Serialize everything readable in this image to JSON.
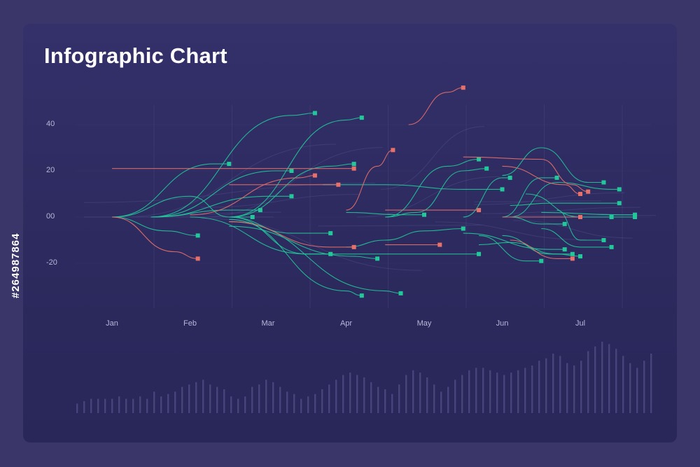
{
  "title": "Infographic Chart",
  "stock_id": "#264987864",
  "colors": {
    "background": "#3a366a",
    "panel": "#2e2b60",
    "green": "#22c79a",
    "red": "#e8706a",
    "grid": "#4a4780",
    "bars": "#4a477f"
  },
  "chart_data": {
    "type": "line",
    "title": "Infographic Chart",
    "y_ticks": [
      "40",
      "20",
      "00",
      "-20"
    ],
    "x_ticks": [
      "Jan",
      "Feb",
      "Mar",
      "Apr",
      "May",
      "Jun",
      "Jul"
    ],
    "ylim": [
      -37,
      57
    ],
    "xlim": [
      0,
      7.2
    ],
    "grid": "vertical lines at month boundaries",
    "series": [
      {
        "color": "green",
        "points": [
          [
            0.5,
            0
          ],
          [
            1.5,
            9
          ],
          [
            2.0,
            0
          ],
          [
            2.3,
            0
          ]
        ]
      },
      {
        "color": "green",
        "points": [
          [
            0.5,
            0
          ],
          [
            1.2,
            -6
          ],
          [
            1.6,
            -8
          ]
        ]
      },
      {
        "color": "green",
        "points": [
          [
            0.5,
            0
          ],
          [
            1.8,
            23
          ],
          [
            2.0,
            23
          ]
        ]
      },
      {
        "color": "green",
        "points": [
          [
            1.0,
            0
          ],
          [
            2.0,
            3
          ],
          [
            2.4,
            3
          ]
        ]
      },
      {
        "color": "green",
        "points": [
          [
            1.0,
            0
          ],
          [
            2.6,
            20
          ],
          [
            2.8,
            20
          ]
        ]
      },
      {
        "color": "green",
        "points": [
          [
            1.0,
            0
          ],
          [
            2.5,
            9
          ],
          [
            2.8,
            9
          ]
        ]
      },
      {
        "color": "green",
        "points": [
          [
            1.0,
            0
          ],
          [
            2.8,
            44
          ],
          [
            3.1,
            45
          ]
        ]
      },
      {
        "color": "green",
        "points": [
          [
            1.5,
            0
          ],
          [
            3.0,
            -16
          ],
          [
            3.3,
            -16
          ]
        ]
      },
      {
        "color": "green",
        "points": [
          [
            2.0,
            0
          ],
          [
            3.3,
            22
          ],
          [
            3.6,
            23
          ]
        ]
      },
      {
        "color": "green",
        "points": [
          [
            2.0,
            0
          ],
          [
            3.5,
            42
          ],
          [
            3.7,
            43
          ]
        ]
      },
      {
        "color": "green",
        "points": [
          [
            2.0,
            0
          ],
          [
            2.8,
            -7
          ],
          [
            3.3,
            -7
          ]
        ]
      },
      {
        "color": "green",
        "points": [
          [
            2.0,
            -1
          ],
          [
            3.5,
            -32
          ],
          [
            3.7,
            -34
          ]
        ]
      },
      {
        "color": "green",
        "points": [
          [
            2.0,
            -2
          ],
          [
            4.0,
            -32
          ],
          [
            4.2,
            -33
          ]
        ]
      },
      {
        "color": "green",
        "points": [
          [
            2.0,
            -4
          ],
          [
            3.6,
            -17
          ],
          [
            3.9,
            -18
          ]
        ]
      },
      {
        "color": "green",
        "points": [
          [
            2.0,
            0
          ],
          [
            3.0,
            -16
          ],
          [
            5.0,
            -16
          ],
          [
            5.2,
            -16
          ]
        ]
      },
      {
        "color": "green",
        "points": [
          [
            3.5,
            -13
          ],
          [
            4.0,
            -10
          ],
          [
            4.5,
            -6
          ],
          [
            5.0,
            -5
          ]
        ]
      },
      {
        "color": "green",
        "points": [
          [
            3.2,
            14
          ],
          [
            4.0,
            14
          ],
          [
            5.0,
            12
          ],
          [
            5.5,
            12
          ]
        ]
      },
      {
        "color": "green",
        "points": [
          [
            4.0,
            0
          ],
          [
            4.4,
            2
          ],
          [
            5.0,
            20
          ],
          [
            5.3,
            21
          ]
        ]
      },
      {
        "color": "green",
        "points": [
          [
            4.0,
            0
          ],
          [
            4.8,
            22
          ],
          [
            5.2,
            25
          ]
        ]
      },
      {
        "color": "green",
        "points": [
          [
            5.2,
            -12
          ],
          [
            5.6,
            -11
          ],
          [
            6.2,
            -16
          ],
          [
            6.5,
            -17
          ]
        ]
      },
      {
        "color": "green",
        "points": [
          [
            5.0,
            0
          ],
          [
            5.5,
            17
          ],
          [
            5.6,
            17
          ]
        ]
      },
      {
        "color": "green",
        "points": [
          [
            5.5,
            18
          ],
          [
            6.0,
            30
          ],
          [
            6.6,
            15
          ],
          [
            6.8,
            15
          ]
        ]
      },
      {
        "color": "green",
        "points": [
          [
            5.6,
            0
          ],
          [
            6.2,
            15
          ],
          [
            6.9,
            12
          ],
          [
            7.0,
            12
          ]
        ]
      },
      {
        "color": "green",
        "points": [
          [
            5.5,
            0
          ],
          [
            6.0,
            17
          ],
          [
            6.2,
            17
          ]
        ]
      },
      {
        "color": "green",
        "points": [
          [
            5.6,
            5
          ],
          [
            6.1,
            6
          ],
          [
            6.9,
            6
          ],
          [
            7.0,
            6
          ]
        ]
      },
      {
        "color": "green",
        "points": [
          [
            5.6,
            0
          ],
          [
            6.0,
            -3
          ],
          [
            6.3,
            -3
          ]
        ]
      },
      {
        "color": "green",
        "points": [
          [
            5.8,
            10
          ],
          [
            6.5,
            0
          ],
          [
            6.9,
            0
          ]
        ]
      },
      {
        "color": "green",
        "points": [
          [
            6.0,
            2
          ],
          [
            7.0,
            1
          ],
          [
            7.2,
            1
          ]
        ]
      },
      {
        "color": "green",
        "points": [
          [
            6.0,
            0
          ],
          [
            7.0,
            0
          ],
          [
            7.2,
            0
          ]
        ]
      },
      {
        "color": "green",
        "points": [
          [
            6.2,
            3
          ],
          [
            6.5,
            -10
          ],
          [
            6.8,
            -10
          ]
        ]
      },
      {
        "color": "green",
        "points": [
          [
            6.0,
            -5
          ],
          [
            6.5,
            -13
          ],
          [
            6.9,
            -13
          ]
        ]
      },
      {
        "color": "green",
        "points": [
          [
            5.5,
            -8
          ],
          [
            6.1,
            -16
          ],
          [
            6.4,
            -16
          ]
        ]
      },
      {
        "color": "green",
        "points": [
          [
            5.2,
            -8
          ],
          [
            5.8,
            -19
          ],
          [
            6.0,
            -19
          ]
        ]
      },
      {
        "color": "green",
        "points": [
          [
            5.0,
            -7
          ],
          [
            6.1,
            -14
          ],
          [
            6.3,
            -14
          ]
        ]
      },
      {
        "color": "green",
        "points": [
          [
            3.5,
            2
          ],
          [
            4.2,
            1
          ],
          [
            4.5,
            1
          ]
        ]
      },
      {
        "color": "red",
        "points": [
          [
            0.5,
            0
          ],
          [
            1.3,
            -15
          ],
          [
            1.6,
            -18
          ]
        ]
      },
      {
        "color": "red",
        "points": [
          [
            0.5,
            21
          ],
          [
            1.5,
            21
          ],
          [
            3.0,
            21
          ],
          [
            3.6,
            21
          ]
        ]
      },
      {
        "color": "red",
        "points": [
          [
            1.5,
            1
          ],
          [
            2.9,
            17
          ],
          [
            3.1,
            18
          ]
        ]
      },
      {
        "color": "red",
        "points": [
          [
            2.0,
            -2
          ],
          [
            3.3,
            -13
          ],
          [
            3.6,
            -13
          ]
        ]
      },
      {
        "color": "red",
        "points": [
          [
            2.0,
            14
          ],
          [
            3.0,
            14
          ],
          [
            3.4,
            14
          ]
        ]
      },
      {
        "color": "red",
        "points": [
          [
            3.5,
            3
          ],
          [
            3.9,
            22
          ],
          [
            4.1,
            29
          ]
        ]
      },
      {
        "color": "red",
        "points": [
          [
            4.0,
            -12
          ],
          [
            4.5,
            -12
          ],
          [
            4.7,
            -12
          ]
        ]
      },
      {
        "color": "red",
        "points": [
          [
            4.3,
            40
          ],
          [
            4.8,
            54
          ],
          [
            5.0,
            56
          ]
        ]
      },
      {
        "color": "red",
        "points": [
          [
            4.0,
            3
          ],
          [
            4.8,
            3
          ],
          [
            5.2,
            3
          ]
        ]
      },
      {
        "color": "red",
        "points": [
          [
            5.0,
            26
          ],
          [
            6.0,
            25
          ],
          [
            6.4,
            14
          ],
          [
            6.6,
            11
          ]
        ]
      },
      {
        "color": "red",
        "points": [
          [
            5.5,
            22
          ],
          [
            6.3,
            14
          ],
          [
            6.5,
            10
          ]
        ]
      },
      {
        "color": "red",
        "points": [
          [
            5.5,
            0
          ],
          [
            6.3,
            0
          ],
          [
            6.5,
            0
          ]
        ]
      },
      {
        "color": "red",
        "points": [
          [
            5.6,
            -10
          ],
          [
            6.2,
            -18
          ],
          [
            6.4,
            -18
          ]
        ]
      }
    ],
    "bars": [
      4,
      5,
      6,
      6,
      6,
      6,
      7,
      6,
      6,
      7,
      6,
      9,
      7,
      8,
      9,
      11,
      12,
      13,
      14,
      12,
      11,
      10,
      7,
      6,
      7,
      11,
      12,
      14,
      13,
      11,
      9,
      8,
      6,
      7,
      8,
      10,
      12,
      14,
      16,
      17,
      16,
      15,
      13,
      11,
      10,
      8,
      12,
      16,
      18,
      17,
      15,
      12,
      9,
      11,
      14,
      16,
      18,
      19,
      19,
      18,
      17,
      16,
      17,
      18,
      19,
      20,
      22,
      23,
      25,
      24,
      21,
      20,
      22,
      26,
      28,
      30,
      29,
      27,
      24,
      21,
      19,
      22,
      25
    ]
  }
}
